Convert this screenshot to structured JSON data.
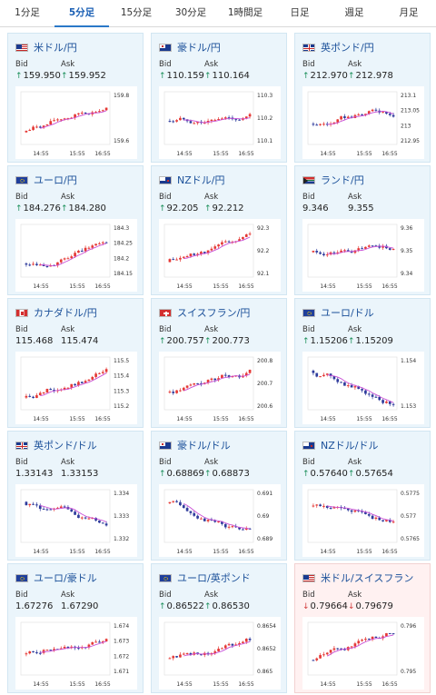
{
  "tabs": [
    {
      "label": "1分足",
      "active": false
    },
    {
      "label": "5分足",
      "active": true
    },
    {
      "label": "15分足",
      "active": false
    },
    {
      "label": "30分足",
      "active": false
    },
    {
      "label": "1時間足",
      "active": false
    },
    {
      "label": "日足",
      "active": false
    },
    {
      "label": "週足",
      "active": false
    },
    {
      "label": "月足",
      "active": false
    }
  ],
  "labels": {
    "bid": "Bid",
    "ask": "Ask"
  },
  "pairs": [
    {
      "name": "米ドル/円",
      "flag": "us",
      "bid": "159.950",
      "ask": "159.952",
      "bid_dir": "up",
      "ask_dir": "up",
      "y_ticks": [
        "159.8",
        "159.6"
      ],
      "x_ticks": [
        "14:55",
        "15:55",
        "16:55"
      ]
    },
    {
      "name": "豪ドル/円",
      "flag": "au",
      "bid": "110.159",
      "ask": "110.164",
      "bid_dir": "up",
      "ask_dir": "up",
      "y_ticks": [
        "110.3",
        "110.2",
        "110.1"
      ],
      "x_ticks": [
        "14:55",
        "15:55",
        "16:55"
      ]
    },
    {
      "name": "英ポンド/円",
      "flag": "gb",
      "bid": "212.970",
      "ask": "212.978",
      "bid_dir": "up",
      "ask_dir": "up",
      "y_ticks": [
        "213.1",
        "213.05",
        "213",
        "212.95"
      ],
      "x_ticks": [
        "14:55",
        "15:55",
        "16:55"
      ]
    },
    {
      "name": "ユーロ/円",
      "flag": "eu",
      "bid": "184.276",
      "ask": "184.280",
      "bid_dir": "up",
      "ask_dir": "up",
      "y_ticks": [
        "184.3",
        "184.25",
        "184.2",
        "184.15"
      ],
      "x_ticks": [
        "14:55",
        "15:55",
        "16:55"
      ]
    },
    {
      "name": "NZドル/円",
      "flag": "nz",
      "bid": "92.205",
      "ask": "92.212",
      "bid_dir": "up",
      "ask_dir": "up",
      "y_ticks": [
        "92.3",
        "92.2",
        "92.1"
      ],
      "x_ticks": [
        "14:55",
        "15:55",
        "16:55"
      ]
    },
    {
      "name": "ランド/円",
      "flag": "za",
      "bid": "9.346",
      "ask": "9.355",
      "bid_dir": "",
      "ask_dir": "",
      "y_ticks": [
        "9.36",
        "9.35",
        "9.34"
      ],
      "x_ticks": [
        "14:55",
        "15:55",
        "16:55"
      ]
    },
    {
      "name": "カナダドル/円",
      "flag": "ca",
      "bid": "115.468",
      "ask": "115.474",
      "bid_dir": "",
      "ask_dir": "",
      "y_ticks": [
        "115.5",
        "115.4",
        "115.3",
        "115.2"
      ],
      "x_ticks": [
        "14:55",
        "15:55",
        "16:55"
      ]
    },
    {
      "name": "スイスフラン/円",
      "flag": "ch",
      "bid": "200.757",
      "ask": "200.773",
      "bid_dir": "up",
      "ask_dir": "up",
      "y_ticks": [
        "200.8",
        "200.7",
        "200.6"
      ],
      "x_ticks": [
        "14:55",
        "15:55",
        "16:55"
      ]
    },
    {
      "name": "ユーロ/ドル",
      "flag": "eu",
      "bid": "1.15206",
      "ask": "1.15209",
      "bid_dir": "up",
      "ask_dir": "up",
      "y_ticks": [
        "1.154",
        "1.153"
      ],
      "x_ticks": [
        "14:55",
        "15:55",
        "16:55"
      ]
    },
    {
      "name": "英ポンド/ドル",
      "flag": "gb",
      "bid": "1.33143",
      "ask": "1.33153",
      "bid_dir": "",
      "ask_dir": "",
      "y_ticks": [
        "1.334",
        "1.333",
        "1.332"
      ],
      "x_ticks": [
        "14:55",
        "15:55",
        "16:55"
      ]
    },
    {
      "name": "豪ドル/ドル",
      "flag": "au",
      "bid": "0.68869",
      "ask": "0.68873",
      "bid_dir": "up",
      "ask_dir": "up",
      "y_ticks": [
        "0.691",
        "0.69",
        "0.689"
      ],
      "x_ticks": [
        "14:55",
        "15:55",
        "16:55"
      ]
    },
    {
      "name": "NZドル/ドル",
      "flag": "nz",
      "bid": "0.57640",
      "ask": "0.57654",
      "bid_dir": "up",
      "ask_dir": "up",
      "y_ticks": [
        "0.5775",
        "0.577",
        "0.5765"
      ],
      "x_ticks": [
        "14:55",
        "15:55",
        "16:55"
      ]
    },
    {
      "name": "ユーロ/豪ドル",
      "flag": "eu",
      "bid": "1.67276",
      "ask": "1.67290",
      "bid_dir": "",
      "ask_dir": "",
      "y_ticks": [
        "1.674",
        "1.673",
        "1.672",
        "1.671"
      ],
      "x_ticks": [
        "14:55",
        "15:55",
        "16:55"
      ]
    },
    {
      "name": "ユーロ/英ポンド",
      "flag": "eu",
      "bid": "0.86522",
      "ask": "0.86530",
      "bid_dir": "up",
      "ask_dir": "up",
      "y_ticks": [
        "0.8654",
        "0.8652",
        "0.865"
      ],
      "x_ticks": [
        "14:55",
        "15:55",
        "16:55"
      ]
    },
    {
      "name": "米ドル/スイスフラン",
      "flag": "us",
      "bid": "0.79664",
      "ask": "0.79679",
      "bid_dir": "down",
      "ask_dir": "down",
      "y_ticks": [
        "0.796",
        "0.795"
      ],
      "x_ticks": [
        "14:55",
        "15:55",
        "16:55"
      ]
    }
  ],
  "colors": {
    "up_candle": "#e53935",
    "down_candle": "#2e3b9c",
    "ma_line": "#c94fd6",
    "arrow_up": "#1b8f5a",
    "arrow_down": "#d23c3c"
  }
}
